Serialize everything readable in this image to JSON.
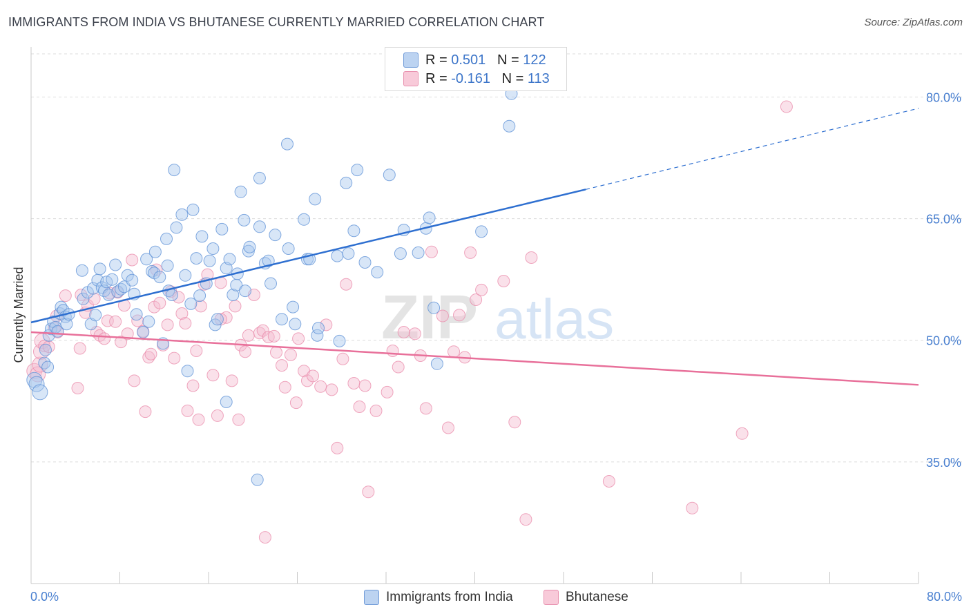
{
  "title": "IMMIGRANTS FROM INDIA VS BHUTANESE CURRENTLY MARRIED CORRELATION CHART",
  "source": "Source: ZipAtlas.com",
  "watermark": {
    "zip": "ZIP",
    "atlas": "atlas"
  },
  "colors": {
    "blue_fill": "#a9c8ee",
    "blue_stroke": "#5b8fd6",
    "blue_line": "#2e6fd0",
    "pink_fill": "#f5bcd0",
    "pink_stroke": "#e98aaa",
    "pink_line": "#e8709a",
    "axis_label": "#4a80d0",
    "grid": "#dcdcdc"
  },
  "legend_top": {
    "rows": [
      {
        "r_label": "R = ",
        "r_value": "0.501",
        "n_label": "N = ",
        "n_value": "122"
      },
      {
        "r_label": "R = ",
        "r_value": "-0.161",
        "n_label": "N = ",
        "n_value": "113"
      }
    ]
  },
  "legend_bottom": {
    "items": [
      "Immigrants from India",
      "Bhutanese"
    ]
  },
  "chart_data": {
    "type": "scatter",
    "ylabel": "Currently Married",
    "xlabel": "",
    "xlim": [
      0,
      80
    ],
    "ylim": [
      20,
      86
    ],
    "x_tick_labels": {
      "left": "0.0%",
      "right": "80.0%"
    },
    "y_ticks": [
      35,
      50,
      65,
      80
    ],
    "y_tick_labels": [
      "35.0%",
      "50.0%",
      "65.0%",
      "80.0%"
    ],
    "grid": true,
    "series": [
      {
        "name": "Immigrants from India",
        "r": 0.501,
        "n": 122,
        "trend": {
          "x0": 0,
          "y0": 52.2,
          "x1": 50,
          "y1": 68.6,
          "x_ext": 80,
          "y_ext": 78.6
        },
        "points": [
          [
            0.3,
            45.1
          ],
          [
            0.5,
            44.6
          ],
          [
            0.8,
            43.6
          ],
          [
            1.2,
            47.2
          ],
          [
            1.3,
            48.8
          ],
          [
            1.5,
            46.7
          ],
          [
            1.6,
            50.6
          ],
          [
            1.8,
            51.4
          ],
          [
            2.0,
            52.3
          ],
          [
            2.2,
            51.6
          ],
          [
            2.4,
            51.1
          ],
          [
            2.6,
            53.3
          ],
          [
            2.7,
            54.1
          ],
          [
            2.9,
            53.7
          ],
          [
            3.1,
            52.9
          ],
          [
            3.2,
            52.0
          ],
          [
            3.4,
            53.2
          ],
          [
            4.6,
            58.6
          ],
          [
            4.7,
            55.1
          ],
          [
            5.1,
            55.9
          ],
          [
            5.4,
            52.0
          ],
          [
            5.6,
            56.4
          ],
          [
            5.8,
            53.1
          ],
          [
            6.0,
            57.4
          ],
          [
            6.2,
            58.8
          ],
          [
            6.4,
            56.5
          ],
          [
            6.6,
            56.1
          ],
          [
            6.8,
            57.2
          ],
          [
            7.0,
            55.6
          ],
          [
            7.3,
            57.5
          ],
          [
            7.6,
            59.3
          ],
          [
            7.8,
            56.0
          ],
          [
            8.1,
            56.3
          ],
          [
            8.4,
            56.6
          ],
          [
            8.7,
            58.0
          ],
          [
            9.1,
            57.4
          ],
          [
            9.3,
            55.7
          ],
          [
            9.5,
            53.2
          ],
          [
            10.1,
            51.0
          ],
          [
            10.4,
            60.0
          ],
          [
            10.6,
            52.3
          ],
          [
            10.9,
            58.5
          ],
          [
            11.1,
            58.3
          ],
          [
            11.6,
            57.8
          ],
          [
            11.2,
            60.9
          ],
          [
            11.9,
            49.6
          ],
          [
            12.2,
            62.5
          ],
          [
            12.3,
            59.2
          ],
          [
            12.4,
            56.1
          ],
          [
            12.7,
            55.6
          ],
          [
            12.9,
            71.0
          ],
          [
            13.1,
            63.9
          ],
          [
            13.6,
            65.5
          ],
          [
            13.9,
            58.0
          ],
          [
            14.1,
            46.2
          ],
          [
            14.4,
            54.5
          ],
          [
            14.6,
            66.1
          ],
          [
            14.9,
            60.1
          ],
          [
            15.2,
            55.5
          ],
          [
            15.4,
            62.8
          ],
          [
            15.8,
            57.0
          ],
          [
            16.1,
            59.8
          ],
          [
            16.4,
            61.3
          ],
          [
            16.6,
            51.9
          ],
          [
            16.8,
            52.6
          ],
          [
            17.2,
            63.7
          ],
          [
            17.6,
            58.9
          ],
          [
            17.9,
            60.0
          ],
          [
            17.6,
            42.4
          ],
          [
            18.2,
            55.6
          ],
          [
            18.5,
            56.8
          ],
          [
            18.6,
            58.2
          ],
          [
            18.9,
            68.3
          ],
          [
            19.2,
            64.8
          ],
          [
            19.3,
            56.1
          ],
          [
            19.6,
            61.0
          ],
          [
            19.7,
            61.5
          ],
          [
            20.4,
            32.8
          ],
          [
            20.6,
            64.0
          ],
          [
            20.6,
            70.0
          ],
          [
            21.1,
            59.5
          ],
          [
            21.4,
            59.8
          ],
          [
            21.6,
            57.0
          ],
          [
            22.0,
            63.0
          ],
          [
            22.6,
            52.6
          ],
          [
            23.1,
            74.2
          ],
          [
            23.2,
            61.3
          ],
          [
            23.6,
            54.1
          ],
          [
            23.8,
            52.0
          ],
          [
            24.6,
            64.9
          ],
          [
            24.9,
            60.0
          ],
          [
            25.1,
            60.0
          ],
          [
            25.6,
            67.4
          ],
          [
            25.8,
            50.6
          ],
          [
            25.9,
            51.5
          ],
          [
            27.6,
            60.4
          ],
          [
            27.8,
            49.9
          ],
          [
            28.4,
            69.4
          ],
          [
            28.6,
            60.7
          ],
          [
            29.1,
            63.5
          ],
          [
            29.4,
            71.0
          ],
          [
            30.1,
            59.6
          ],
          [
            31.2,
            58.4
          ],
          [
            32.3,
            70.4
          ],
          [
            33.3,
            60.7
          ],
          [
            33.6,
            63.6
          ],
          [
            34.9,
            60.8
          ],
          [
            35.6,
            63.8
          ],
          [
            35.9,
            65.1
          ],
          [
            36.3,
            54.0
          ],
          [
            36.6,
            47.1
          ],
          [
            40.6,
            63.4
          ],
          [
            43.1,
            76.4
          ],
          [
            43.3,
            80.4
          ]
        ]
      },
      {
        "name": "Bhutanese",
        "r": -0.161,
        "n": 113,
        "trend": {
          "x0": 0,
          "y0": 51.0,
          "x1": 80,
          "y1": 44.5
        },
        "points": [
          [
            0.3,
            46.2
          ],
          [
            0.6,
            45.8
          ],
          [
            0.8,
            47.0
          ],
          [
            0.9,
            48.6
          ],
          [
            1.0,
            49.9
          ],
          [
            1.2,
            49.3
          ],
          [
            1.6,
            49.2
          ],
          [
            2.1,
            51.5
          ],
          [
            2.3,
            53.0
          ],
          [
            2.4,
            51.0
          ],
          [
            3.1,
            55.5
          ],
          [
            4.2,
            44.1
          ],
          [
            4.4,
            49.0
          ],
          [
            4.5,
            55.6
          ],
          [
            4.9,
            53.4
          ],
          [
            5.1,
            54.3
          ],
          [
            5.7,
            55.1
          ],
          [
            5.9,
            51.0
          ],
          [
            6.2,
            50.6
          ],
          [
            6.6,
            50.2
          ],
          [
            6.9,
            52.4
          ],
          [
            7.1,
            55.8
          ],
          [
            7.6,
            52.3
          ],
          [
            7.8,
            55.9
          ],
          [
            8.1,
            49.8
          ],
          [
            8.4,
            54.3
          ],
          [
            8.7,
            50.8
          ],
          [
            9.1,
            59.9
          ],
          [
            9.3,
            45.0
          ],
          [
            9.6,
            52.4
          ],
          [
            10.1,
            51.1
          ],
          [
            10.3,
            41.2
          ],
          [
            10.6,
            47.9
          ],
          [
            10.8,
            48.3
          ],
          [
            11.1,
            54.1
          ],
          [
            11.3,
            58.7
          ],
          [
            11.6,
            54.6
          ],
          [
            11.9,
            49.4
          ],
          [
            12.3,
            51.9
          ],
          [
            12.6,
            56.0
          ],
          [
            12.9,
            47.8
          ],
          [
            13.3,
            55.3
          ],
          [
            13.6,
            53.3
          ],
          [
            13.9,
            52.1
          ],
          [
            14.1,
            41.3
          ],
          [
            14.6,
            44.4
          ],
          [
            14.9,
            48.7
          ],
          [
            15.1,
            40.2
          ],
          [
            15.3,
            54.2
          ],
          [
            15.6,
            56.9
          ],
          [
            15.9,
            58.1
          ],
          [
            16.4,
            45.7
          ],
          [
            16.8,
            40.7
          ],
          [
            17.1,
            57.1
          ],
          [
            17.6,
            52.8
          ],
          [
            18.1,
            45.0
          ],
          [
            18.4,
            54.2
          ],
          [
            18.7,
            40.2
          ],
          [
            18.9,
            49.4
          ],
          [
            19.3,
            48.6
          ],
          [
            19.6,
            50.6
          ],
          [
            20.1,
            55.6
          ],
          [
            20.6,
            50.9
          ],
          [
            20.9,
            51.2
          ],
          [
            21.4,
            50.4
          ],
          [
            21.9,
            50.5
          ],
          [
            22.1,
            48.5
          ],
          [
            22.6,
            46.9
          ],
          [
            22.9,
            44.2
          ],
          [
            23.4,
            48.2
          ],
          [
            23.9,
            42.3
          ],
          [
            24.1,
            50.2
          ],
          [
            24.6,
            46.2
          ],
          [
            24.9,
            45.0
          ],
          [
            25.4,
            45.6
          ],
          [
            26.1,
            44.3
          ],
          [
            26.6,
            51.9
          ],
          [
            27.1,
            43.9
          ],
          [
            27.6,
            36.7
          ],
          [
            28.1,
            47.7
          ],
          [
            28.4,
            56.9
          ],
          [
            29.1,
            44.7
          ],
          [
            29.6,
            41.8
          ],
          [
            30.1,
            44.4
          ],
          [
            30.4,
            31.3
          ],
          [
            31.1,
            41.3
          ],
          [
            32.1,
            43.6
          ],
          [
            32.6,
            48.7
          ],
          [
            33.1,
            46.7
          ],
          [
            33.6,
            51.0
          ],
          [
            34.6,
            50.8
          ],
          [
            35.1,
            48.1
          ],
          [
            35.6,
            41.6
          ],
          [
            36.1,
            60.9
          ],
          [
            37.1,
            53.0
          ],
          [
            37.6,
            39.2
          ],
          [
            38.1,
            48.6
          ],
          [
            38.6,
            53.1
          ],
          [
            39.1,
            47.9
          ],
          [
            39.6,
            60.8
          ],
          [
            40.1,
            55.0
          ],
          [
            40.6,
            56.2
          ],
          [
            42.6,
            57.3
          ],
          [
            43.6,
            39.9
          ],
          [
            44.6,
            27.9
          ],
          [
            45.1,
            60.2
          ],
          [
            52.1,
            32.6
          ],
          [
            59.6,
            29.3
          ],
          [
            64.1,
            38.5
          ],
          [
            68.1,
            78.8
          ],
          [
            21.1,
            25.7
          ],
          [
            17.1,
            52.6
          ]
        ]
      }
    ]
  }
}
